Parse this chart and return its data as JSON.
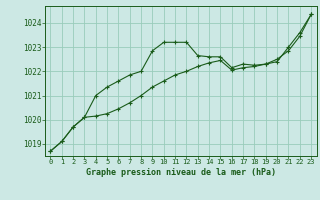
{
  "title": "Graphe pression niveau de la mer (hPa)",
  "bg_color": "#cce8e4",
  "plot_bg_color": "#cce8e4",
  "grid_color": "#99ccbb",
  "line_color": "#1a5c1a",
  "marker_color": "#1a5c1a",
  "xlim": [
    -0.5,
    23.5
  ],
  "ylim": [
    1018.5,
    1024.7
  ],
  "yticks": [
    1019,
    1020,
    1021,
    1022,
    1023,
    1024
  ],
  "xticks": [
    0,
    1,
    2,
    3,
    4,
    5,
    6,
    7,
    8,
    9,
    10,
    11,
    12,
    13,
    14,
    15,
    16,
    17,
    18,
    19,
    20,
    21,
    22,
    23
  ],
  "series1_x": [
    0,
    1,
    2,
    3,
    4,
    5,
    6,
    7,
    8,
    9,
    10,
    11,
    12,
    13,
    14,
    15,
    16,
    17,
    18,
    19,
    20,
    21,
    22,
    23
  ],
  "series1_y": [
    1018.7,
    1019.1,
    1019.7,
    1020.1,
    1021.0,
    1021.35,
    1021.6,
    1021.85,
    1022.0,
    1022.85,
    1023.2,
    1023.2,
    1023.2,
    1022.65,
    1022.6,
    1022.6,
    1022.15,
    1022.3,
    1022.25,
    1022.3,
    1022.4,
    1023.0,
    1023.6,
    1024.35
  ],
  "series2_x": [
    0,
    1,
    2,
    3,
    4,
    5,
    6,
    7,
    8,
    9,
    10,
    11,
    12,
    13,
    14,
    15,
    16,
    17,
    18,
    19,
    20,
    21,
    22,
    23
  ],
  "series2_y": [
    1018.7,
    1019.1,
    1019.7,
    1020.1,
    1020.15,
    1020.25,
    1020.45,
    1020.7,
    1021.0,
    1021.35,
    1021.6,
    1021.85,
    1022.0,
    1022.2,
    1022.35,
    1022.45,
    1022.05,
    1022.15,
    1022.2,
    1022.3,
    1022.5,
    1022.85,
    1023.45,
    1024.35
  ]
}
